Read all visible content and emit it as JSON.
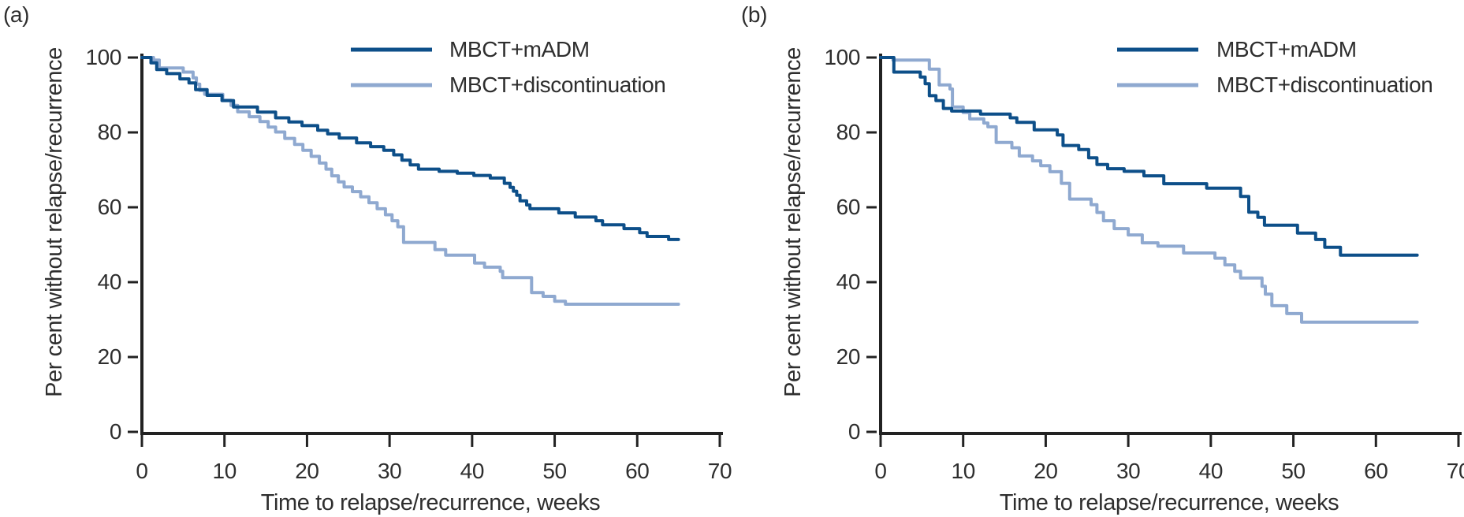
{
  "figure": {
    "background": "#ffffff",
    "text_color": "#2e2e2e",
    "axis_color": "#222222"
  },
  "chart_data": [
    {
      "type": "line",
      "subtype": "kaplan-meier-step",
      "panel_label": "(a)",
      "xlabel": "Time to relapse/recurrence, weeks",
      "ylabel": "Per cent without relapse/recurrence",
      "xlim": [
        0,
        70
      ],
      "ylim": [
        0,
        100
      ],
      "x_ticks": [
        0,
        10,
        20,
        30,
        40,
        50,
        60,
        70
      ],
      "y_ticks": [
        0,
        20,
        40,
        60,
        80,
        100
      ],
      "grid": false,
      "legend_position": "top-right-inside",
      "series": [
        {
          "name": "MBCT+mADM",
          "color": "#0d4f89",
          "points": [
            [
              0,
              100
            ],
            [
              1.1,
              98.6
            ],
            [
              1.8,
              96.8
            ],
            [
              3,
              95.7
            ],
            [
              4.6,
              94.3
            ],
            [
              5.7,
              93.2
            ],
            [
              6.5,
              91.4
            ],
            [
              7.9,
              89.9
            ],
            [
              9.7,
              88.5
            ],
            [
              11.1,
              86.8
            ],
            [
              14,
              85.4
            ],
            [
              16.2,
              83.9
            ],
            [
              17.8,
              82.8
            ],
            [
              19.4,
              81.8
            ],
            [
              21.3,
              80.6
            ],
            [
              22.5,
              79.6
            ],
            [
              23.9,
              78.5
            ],
            [
              26,
              77.2
            ],
            [
              27.7,
              76.2
            ],
            [
              29.3,
              75.2
            ],
            [
              30.5,
              74
            ],
            [
              31.5,
              72.6
            ],
            [
              32.5,
              71.3
            ],
            [
              33.5,
              70.2
            ],
            [
              36,
              69.6
            ],
            [
              38.2,
              69.1
            ],
            [
              40.2,
              68.5
            ],
            [
              42.2,
              67.8
            ],
            [
              43.9,
              66.4
            ],
            [
              44.6,
              65.3
            ],
            [
              45,
              64.3
            ],
            [
              45.4,
              63.2
            ],
            [
              45.8,
              61.7
            ],
            [
              46.6,
              60.6
            ],
            [
              47,
              59.6
            ],
            [
              50.5,
              58.5
            ],
            [
              52.5,
              57.4
            ],
            [
              55,
              56.4
            ],
            [
              55.8,
              55.3
            ],
            [
              58.4,
              54.3
            ],
            [
              60.3,
              53.2
            ],
            [
              61.2,
              52.2
            ],
            [
              63.8,
              51.4
            ],
            [
              65,
              51.4
            ]
          ]
        },
        {
          "name": "MBCT+discontinuation",
          "color": "#8fa9d0",
          "points": [
            [
              0,
              100
            ],
            [
              1.4,
              99.3
            ],
            [
              2.1,
              97.2
            ],
            [
              5,
              96.1
            ],
            [
              6.2,
              94.6
            ],
            [
              6.6,
              92.9
            ],
            [
              7,
              91.2
            ],
            [
              7.6,
              90.2
            ],
            [
              9.8,
              88.6
            ],
            [
              10.8,
              87.2
            ],
            [
              11.6,
              85.5
            ],
            [
              13,
              84.2
            ],
            [
              14.3,
              82.9
            ],
            [
              15.3,
              81.4
            ],
            [
              16.2,
              80.1
            ],
            [
              17.3,
              78.4
            ],
            [
              18.5,
              76.8
            ],
            [
              19.5,
              75.2
            ],
            [
              20.5,
              73.6
            ],
            [
              21.5,
              71.8
            ],
            [
              22.3,
              70.2
            ],
            [
              23,
              68.4
            ],
            [
              23.8,
              66.8
            ],
            [
              24.5,
              65.4
            ],
            [
              25.5,
              64.2
            ],
            [
              26.5,
              62.8
            ],
            [
              27.5,
              61.2
            ],
            [
              28.5,
              59.6
            ],
            [
              29.5,
              58
            ],
            [
              30.3,
              56.4
            ],
            [
              31,
              54.8
            ],
            [
              31.7,
              50.6
            ],
            [
              35.5,
              48.7
            ],
            [
              36.8,
              47.2
            ],
            [
              40.3,
              45.1
            ],
            [
              41.5,
              44
            ],
            [
              43.4,
              42.9
            ],
            [
              43.7,
              41.2
            ],
            [
              47.2,
              37.2
            ],
            [
              48.6,
              36.2
            ],
            [
              50,
              34.9
            ],
            [
              51.3,
              34.1
            ],
            [
              65,
              34.1
            ]
          ]
        }
      ]
    },
    {
      "type": "line",
      "subtype": "kaplan-meier-step",
      "panel_label": "(b)",
      "xlabel": "Time to relapse/recurrence, weeks",
      "ylabel": "Per cent without relapse/recurrence",
      "xlim": [
        0,
        70
      ],
      "ylim": [
        0,
        100
      ],
      "x_ticks": [
        0,
        10,
        20,
        30,
        40,
        50,
        60,
        70
      ],
      "y_ticks": [
        0,
        20,
        40,
        60,
        80,
        100
      ],
      "grid": false,
      "legend_position": "top-right-inside",
      "series": [
        {
          "name": "MBCT+mADM",
          "color": "#0d4f89",
          "points": [
            [
              0,
              100
            ],
            [
              1.6,
              96.1
            ],
            [
              4.8,
              94.8
            ],
            [
              5.4,
              93
            ],
            [
              5.9,
              89.8
            ],
            [
              6.7,
              88.5
            ],
            [
              7.6,
              86.4
            ],
            [
              8.6,
              85.7
            ],
            [
              12.1,
              84.9
            ],
            [
              15.7,
              83.9
            ],
            [
              16.5,
              82.7
            ],
            [
              18.6,
              80.7
            ],
            [
              21.4,
              79.3
            ],
            [
              22.1,
              76.5
            ],
            [
              24,
              75.4
            ],
            [
              25.2,
              73.2
            ],
            [
              26.2,
              71.4
            ],
            [
              27.5,
              70.3
            ],
            [
              29.5,
              69.6
            ],
            [
              31.9,
              68.4
            ],
            [
              34.3,
              66.3
            ],
            [
              39.5,
              65.1
            ],
            [
              43.6,
              62.9
            ],
            [
              44.6,
              58.7
            ],
            [
              45.7,
              57.3
            ],
            [
              46.5,
              55.2
            ],
            [
              50.5,
              53.1
            ],
            [
              52.7,
              51.4
            ],
            [
              53.8,
              49.3
            ],
            [
              55.7,
              47.2
            ],
            [
              65,
              47.2
            ]
          ]
        },
        {
          "name": "MBCT+discontinuation",
          "color": "#8fa9d0",
          "points": [
            [
              0,
              100
            ],
            [
              1.5,
              99.3
            ],
            [
              5.9,
              96.9
            ],
            [
              7.1,
              92.7
            ],
            [
              8.4,
              91.6
            ],
            [
              8.7,
              86.8
            ],
            [
              10,
              85.3
            ],
            [
              10.8,
              83.6
            ],
            [
              12.5,
              82.5
            ],
            [
              13,
              81.5
            ],
            [
              14,
              77.3
            ],
            [
              15.9,
              75.9
            ],
            [
              16.8,
              73.7
            ],
            [
              18.4,
              72.4
            ],
            [
              19.4,
              71.1
            ],
            [
              20.5,
              69.5
            ],
            [
              21.9,
              66.4
            ],
            [
              22.9,
              62.2
            ],
            [
              25.5,
              60.7
            ],
            [
              26.2,
              58.6
            ],
            [
              27,
              56.4
            ],
            [
              28.3,
              54.3
            ],
            [
              30,
              52.6
            ],
            [
              31.7,
              50.5
            ],
            [
              33.6,
              49.6
            ],
            [
              36.7,
              47.8
            ],
            [
              40.5,
              46.4
            ],
            [
              41.7,
              44.6
            ],
            [
              42.9,
              42.9
            ],
            [
              43.6,
              41.1
            ],
            [
              46.2,
              38.9
            ],
            [
              46.6,
              36.8
            ],
            [
              47.4,
              33.7
            ],
            [
              49.2,
              31.6
            ],
            [
              51,
              29.3
            ],
            [
              65,
              29.3
            ]
          ]
        }
      ]
    }
  ]
}
